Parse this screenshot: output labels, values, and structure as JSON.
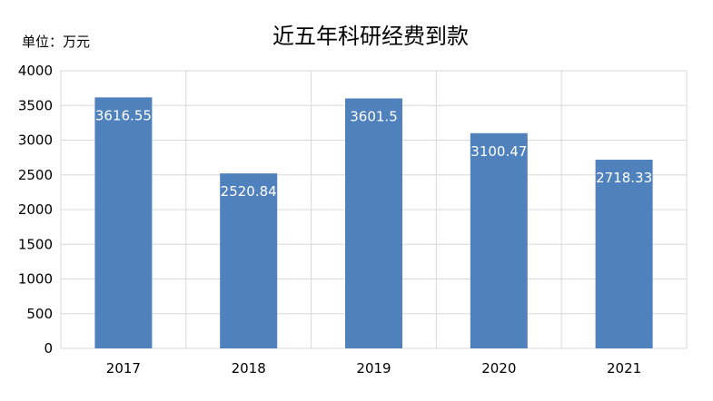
{
  "chart_data": {
    "type": "bar",
    "title": "近五年科研经费到款",
    "unit_label": "单位：万元",
    "categories": [
      "2017",
      "2018",
      "2019",
      "2020",
      "2021"
    ],
    "values": [
      3616.55,
      2520.84,
      3601.5,
      3100.47,
      2718.33
    ],
    "value_labels": [
      "3616.55",
      "2520.84",
      "3601.5",
      "3100.47",
      "2718.33"
    ],
    "ylim": [
      0,
      4000
    ],
    "yticks": [
      0,
      500,
      1000,
      1500,
      2000,
      2500,
      3000,
      3500,
      4000
    ],
    "grid": true,
    "bar_color": "#4f81bd",
    "grid_color": "#d9d9d9",
    "label_color": "#ffffff"
  }
}
